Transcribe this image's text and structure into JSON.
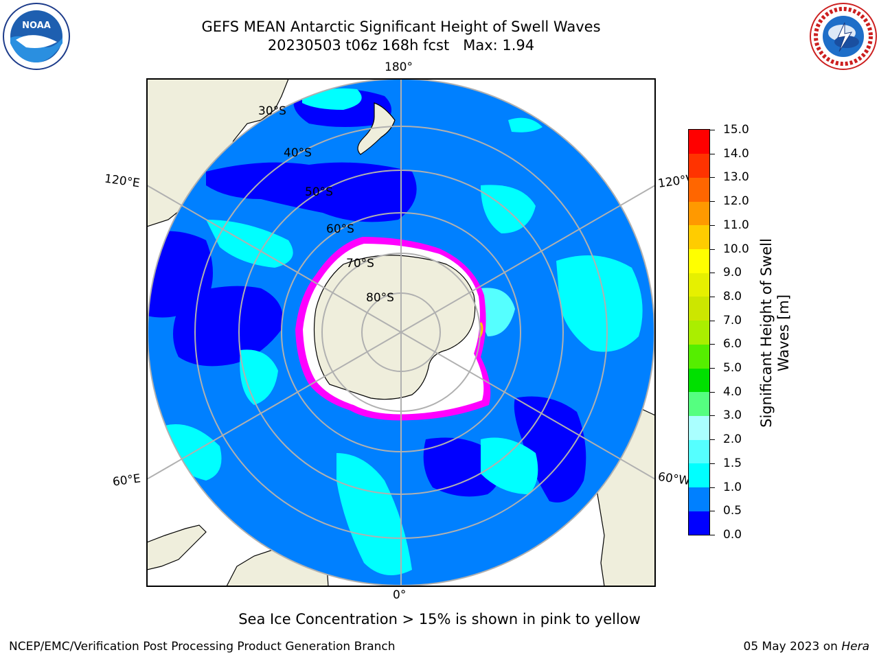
{
  "title": {
    "line1": "GEFS MEAN Antarctic Significant Height of Swell Waves",
    "line2": "20230503 t06z 168h fcst   Max: 1.94"
  },
  "logos": {
    "left": {
      "name": "noaa-logo",
      "text": "NOAA",
      "ring_text": "NATIONAL OCEANIC AND ATMOSPHERIC ADMINISTRATION · U.S. DEPARTMENT OF COMMERCE"
    },
    "right": {
      "name": "nws-logo",
      "ring_text": "NATIONAL WEATHER SERVICE"
    }
  },
  "map": {
    "projection": "south-polar-stereographic",
    "longitude_labels": {
      "top": "180°",
      "bottom": "0°",
      "upper_left": "120°E",
      "upper_right": "120°W",
      "lower_left": "60°E",
      "lower_right": "60°W"
    },
    "latitude_labels": [
      "30°S",
      "40°S",
      "50°S",
      "60°S",
      "70°S",
      "80°S"
    ],
    "colors": {
      "ocean_base": "#0080ff",
      "low_swell": "#0000ff",
      "mid_swell": "#00ffff",
      "land": "#efeedc",
      "ice": "#ffffff",
      "ice_edge": "#ff00ff",
      "ice_edge_high": "#ffcc00",
      "gridline": "#b0b0b0"
    }
  },
  "colorbar": {
    "label": "Significant Height of Swell Waves [m]",
    "label_line1": "Significant Height of Swell",
    "label_line2": "Waves [m]",
    "tick_labels": [
      "0.0",
      "0.5",
      "1.0",
      "1.5",
      "2.0",
      "3.0",
      "4.0",
      "5.0",
      "6.0",
      "7.0",
      "8.0",
      "9.0",
      "10.0",
      "11.0",
      "12.0",
      "13.0",
      "14.0",
      "15.0"
    ],
    "colors": [
      "#0000ff",
      "#0080ff",
      "#00ffff",
      "#55ffff",
      "#aaffff",
      "#55ff80",
      "#00e000",
      "#55ee00",
      "#aaee00",
      "#cce600",
      "#e6f000",
      "#ffff00",
      "#ffcc00",
      "#ff9900",
      "#ff6600",
      "#ff3300",
      "#ff0000"
    ]
  },
  "footnote": "Sea Ice Concentration > 15% is shown in pink to yellow",
  "credit_left": "NCEP/EMC/Verification Post Processing Product Generation Branch",
  "credit_right_prefix": "05 May 2023 on ",
  "credit_right_host": "Hera"
}
